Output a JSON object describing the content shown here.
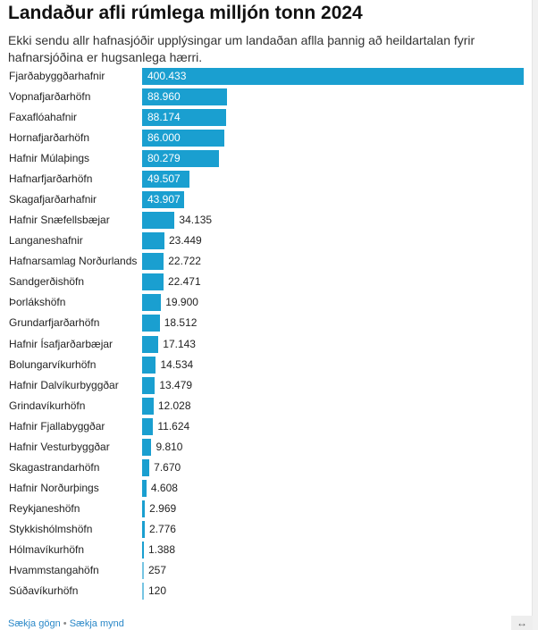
{
  "title": "Landaður afli rúmlega milljón tonn 2024",
  "subtitle": "Ekki sendu allr hafnasjóðir upplýsingar um landaðan aflla þannig að heildartalan fyrir hafnarsjóðina er hugsanlega hærri.",
  "footer": {
    "download_data": "Sækja gögn",
    "separator": "•",
    "download_image": "Sækja mynd",
    "resize_icon": "↔"
  },
  "colors": {
    "bar": "#1a9fd0"
  },
  "chart_data": {
    "type": "bar",
    "orientation": "horizontal",
    "title": "Landaður afli rúmlega milljón tonn 2024",
    "xlabel": "",
    "ylabel": "",
    "xlim": [
      0,
      400.433
    ],
    "categories": [
      "Fjarðabyggðarhafnir",
      "Vopnafjarðarhöfn",
      "Faxaflóahafnir",
      "Hornafjarðarhöfn",
      "Hafnir Múlaþings",
      "Hafnarfjarðarhöfn",
      "Skagafjarðarhafnir",
      "Hafnir Snæfellsbæjar",
      "Langaneshafnir",
      "Hafnarsamlag Norðurlands",
      "Sandgerðishöfn",
      "Þorlákshöfn",
      "Grundarfjarðarhöfn",
      "Hafnir Ísafjarðarbæjar",
      "Bolungarvíkurhöfn",
      "Hafnir Dalvíkurbyggðar",
      "Grindavíkurhöfn",
      "Hafnir Fjallabyggðar",
      "Hafnir Vesturbyggðar",
      "Skagastrandarhöfn",
      "Hafnir Norðurþings",
      "Reykjaneshöfn",
      "Stykkishólmshöfn",
      "Hólmavíkurhöfn",
      "Hvammstangahöfn",
      "Súðavíkurhöfn"
    ],
    "values": [
      400433,
      88960,
      88174,
      86000,
      80279,
      49507,
      43907,
      34135,
      23449,
      22722,
      22471,
      19900,
      18512,
      17143,
      14534,
      13479,
      12028,
      11624,
      9810,
      7670,
      4608,
      2969,
      2776,
      1388,
      257,
      120
    ],
    "labels": [
      "400.433",
      "88.960",
      "88.174",
      "86.000",
      "80.279",
      "49.507",
      "43.907",
      "34.135",
      "23.449",
      "22.722",
      "22.471",
      "19.900",
      "18.512",
      "17.143",
      "14.534",
      "13.479",
      "12.028",
      "11.624",
      "9.810",
      "7.670",
      "4.608",
      "2.969",
      "2.776",
      "1.388",
      "257",
      "120"
    ]
  }
}
